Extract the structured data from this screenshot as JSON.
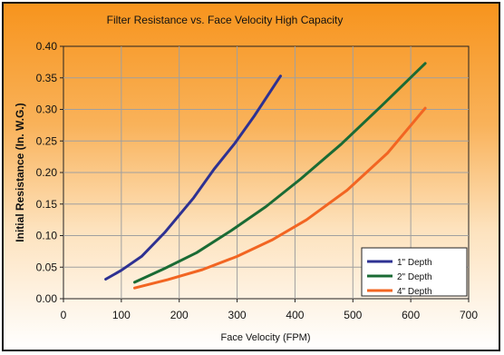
{
  "chart_data": {
    "type": "line",
    "title": "Filter Resistance vs. Face Velocity High Capacity",
    "xlabel": "Face Velocity (FPM)",
    "ylabel": "Initial Resistance (In. W.G.)",
    "xlim": [
      0,
      700
    ],
    "ylim": [
      0,
      0.4
    ],
    "xticks": [
      0,
      100,
      200,
      300,
      400,
      500,
      600,
      700
    ],
    "yticks": [
      0.0,
      0.05,
      0.1,
      0.15,
      0.2,
      0.25,
      0.3,
      0.35,
      0.4
    ],
    "xtick_labels": [
      "0",
      "100",
      "200",
      "300",
      "400",
      "500",
      "600",
      "700"
    ],
    "ytick_labels": [
      "0.00",
      "0.05",
      "0.10",
      "0.15",
      "0.20",
      "0.25",
      "0.30",
      "0.35",
      "0.40"
    ],
    "grid": true,
    "legend_position": "bottom-right",
    "series": [
      {
        "name": "1\" Depth",
        "color": "#2e3192",
        "x": [
          73,
          100,
          135,
          175,
          225,
          260,
          295,
          330,
          375
        ],
        "y": [
          0.031,
          0.045,
          0.067,
          0.105,
          0.16,
          0.205,
          0.245,
          0.29,
          0.353
        ]
      },
      {
        "name": "2\" Depth",
        "color": "#1a6b34",
        "x": [
          123,
          175,
          230,
          290,
          350,
          410,
          480,
          550,
          625
        ],
        "y": [
          0.026,
          0.048,
          0.073,
          0.108,
          0.146,
          0.19,
          0.245,
          0.306,
          0.373
        ]
      },
      {
        "name": "4\" Depth",
        "color": "#f26522",
        "x": [
          123,
          180,
          240,
          300,
          360,
          420,
          490,
          560,
          625
        ],
        "y": [
          0.017,
          0.03,
          0.046,
          0.067,
          0.093,
          0.125,
          0.172,
          0.231,
          0.302
        ]
      }
    ]
  }
}
